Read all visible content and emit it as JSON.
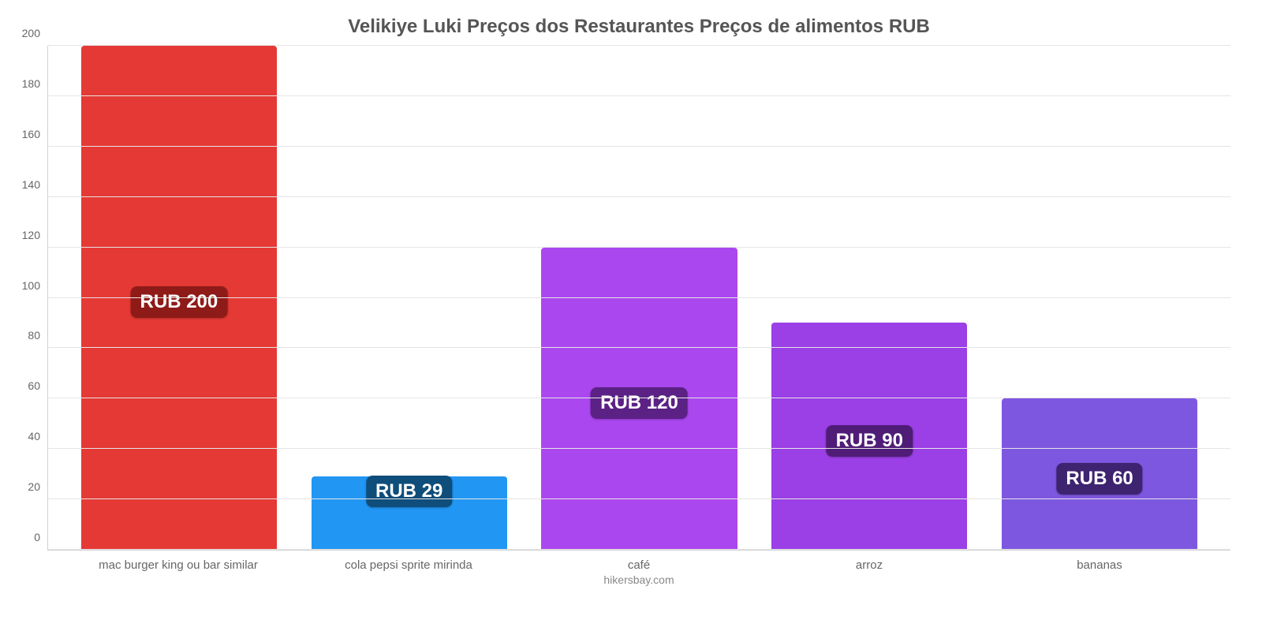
{
  "chart": {
    "type": "bar",
    "title": "Velikiye Luki Preços dos Restaurantes Preços de alimentos RUB",
    "title_fontsize": 24,
    "title_color": "#555555",
    "credit": "hikersbay.com",
    "credit_fontsize": 14,
    "background_color": "#ffffff",
    "grid_color": "#e5e5e5",
    "axis_label_color": "#666666",
    "axis_label_fontsize": 14,
    "xlabel_fontsize": 15,
    "ylim_min": 0,
    "ylim_max": 200,
    "ytick_step": 20,
    "yticks": [
      0,
      20,
      40,
      60,
      80,
      100,
      120,
      140,
      160,
      180,
      200
    ],
    "bar_width_pct": 85,
    "categories": [
      "mac burger king ou bar similar",
      "cola pepsi sprite mirinda",
      "café",
      "arroz",
      "bananas"
    ],
    "values": [
      200,
      29,
      120,
      90,
      60
    ],
    "value_labels": [
      "RUB 200",
      "RUB 29",
      "RUB 120",
      "RUB 90",
      "RUB 60"
    ],
    "bar_colors": [
      "#e53935",
      "#2196f3",
      "#ab47ef",
      "#9b3fe6",
      "#7e57e0"
    ],
    "label_bg_colors": [
      "#8e1b18",
      "#0f4d7a",
      "#5b2185",
      "#4f1c77",
      "#3e2370"
    ],
    "value_label_fontsize": 24,
    "value_label_color": "#ffffff"
  }
}
